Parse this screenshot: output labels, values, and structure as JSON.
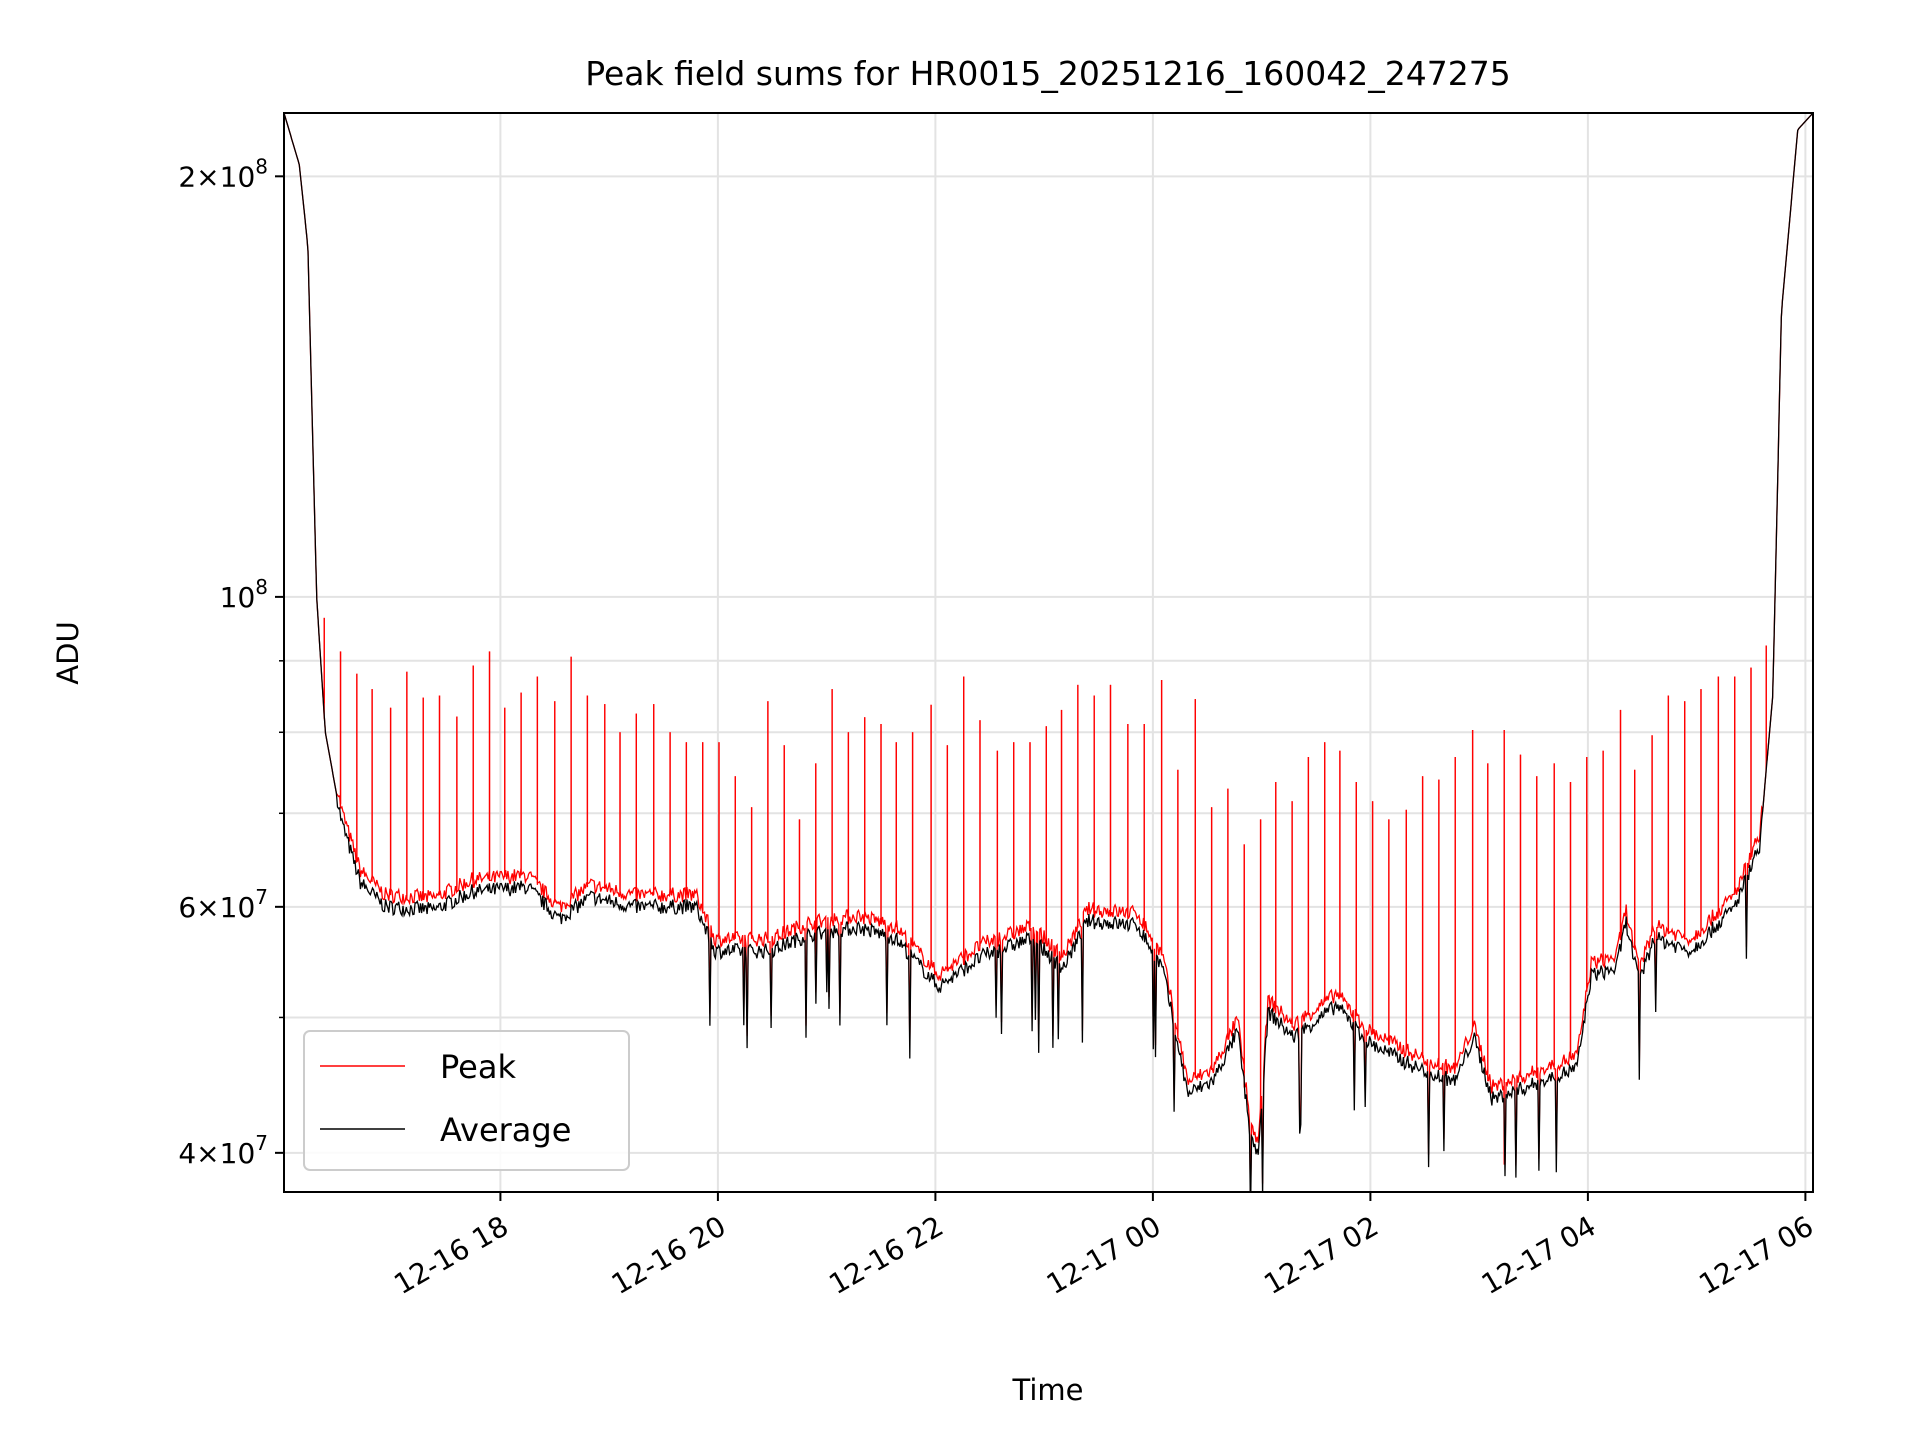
{
  "chart_data": {
    "type": "line",
    "title": "Peak field sums for HR0015_20251216_160042_247275",
    "xlabel": "Time",
    "ylabel": "ADU",
    "yscale": "log",
    "x_units": "hours since 12-16 00:00",
    "xlim": [
      16.01,
      30.07
    ],
    "ylim": [
      37500000,
      222000000
    ],
    "grid": true,
    "legend_position": "lower-left",
    "x_ticks": [
      {
        "value": 18,
        "label": "12-16 18"
      },
      {
        "value": 20,
        "label": "12-16 20"
      },
      {
        "value": 22,
        "label": "12-16 22"
      },
      {
        "value": 24,
        "label": "12-17 00"
      },
      {
        "value": 26,
        "label": "12-17 02"
      },
      {
        "value": 28,
        "label": "12-17 04"
      },
      {
        "value": 30,
        "label": "12-17 06"
      }
    ],
    "y_ticks": [
      {
        "value": 40000000,
        "mantissa": "4",
        "exp": "7"
      },
      {
        "value": 60000000,
        "mantissa": "6",
        "exp": "7"
      },
      {
        "value": 100000000,
        "mantissa": "",
        "exp": "8"
      },
      {
        "value": 200000000,
        "mantissa": "2",
        "exp": "8"
      }
    ],
    "y_minor_ticks": [
      50000000,
      70000000,
      80000000,
      90000000
    ],
    "series": [
      {
        "name": "Peak",
        "color": "#ff0000",
        "peak_over_average": 1.02,
        "spikes": {
          "t": [
            16.38,
            16.53,
            16.68,
            16.82,
            16.99,
            17.14,
            17.29,
            17.44,
            17.6,
            17.75,
            17.9,
            18.04,
            18.19,
            18.34,
            18.5,
            18.65,
            18.8,
            18.96,
            19.1,
            19.25,
            19.41,
            19.56,
            19.71,
            19.86,
            20.01,
            20.16,
            20.31,
            20.46,
            20.61,
            20.75,
            20.9,
            21.05,
            21.2,
            21.35,
            21.5,
            21.64,
            21.79,
            21.96,
            22.11,
            22.26,
            22.41,
            22.57,
            22.72,
            22.87,
            23.02,
            23.16,
            23.31,
            23.46,
            23.61,
            23.77,
            23.92,
            24.08,
            24.23,
            24.39,
            24.54,
            24.69,
            24.84,
            24.99,
            25.13,
            25.28,
            25.43,
            25.58,
            25.72,
            25.87,
            26.02,
            26.17,
            26.33,
            26.48,
            26.63,
            26.78,
            26.94,
            27.08,
            27.23,
            27.38,
            27.53,
            27.69,
            27.84,
            27.99,
            28.14,
            28.3,
            28.43,
            28.59,
            28.74,
            28.89,
            29.04,
            29.2,
            29.35,
            29.5,
            29.64
          ],
          "value_1e7": [
            9.66,
            9.14,
            8.81,
            8.59,
            8.33,
            8.84,
            8.47,
            8.5,
            8.21,
            8.93,
            9.14,
            8.33,
            8.54,
            8.77,
            8.42,
            9.06,
            8.5,
            8.38,
            8.0,
            8.25,
            8.38,
            8.0,
            7.87,
            7.87,
            7.87,
            7.44,
            7.07,
            8.42,
            7.83,
            6.93,
            7.6,
            8.59,
            8.0,
            8.2,
            8.11,
            7.87,
            8.0,
            8.37,
            7.83,
            8.77,
            8.16,
            7.76,
            7.87,
            7.87,
            8.08,
            8.3,
            8.65,
            8.5,
            8.65,
            8.11,
            8.11,
            8.72,
            7.52,
            8.45,
            7.07,
            7.29,
            6.65,
            6.93,
            7.37,
            7.14,
            7.68,
            7.87,
            7.76,
            7.37,
            7.14,
            6.93,
            7.04,
            7.44,
            7.4,
            7.68,
            8.03,
            7.6,
            8.03,
            7.71,
            7.44,
            7.6,
            7.37,
            7.68,
            7.76,
            8.3,
            7.52,
            7.96,
            8.5,
            8.42,
            8.59,
            8.77,
            8.77,
            8.9,
            9.23
          ]
        }
      },
      {
        "name": "Average",
        "color": "#000000",
        "t": [
          16.01,
          16.15,
          16.23,
          16.31,
          16.39,
          16.54,
          16.71,
          16.94,
          17.39,
          17.74,
          18.25,
          18.54,
          18.83,
          19.22,
          19.8,
          19.97,
          20.48,
          20.83,
          21.29,
          21.63,
          22.03,
          22.43,
          22.89,
          23.17,
          23.4,
          23.86,
          24.09,
          24.32,
          24.55,
          24.78,
          24.89,
          24.97,
          25.06,
          25.29,
          25.69,
          25.98,
          26.43,
          26.78,
          26.95,
          27.12,
          27.58,
          27.9,
          28.03,
          28.26,
          28.35,
          28.47,
          28.61,
          28.95,
          29.35,
          29.58,
          29.7,
          29.78,
          29.93,
          30.07
        ],
        "value_1e7": [
          22.2,
          20.4,
          17.8,
          10.0,
          8.0,
          6.9,
          6.25,
          6.0,
          5.97,
          6.15,
          6.2,
          5.88,
          6.1,
          6.0,
          6.0,
          5.58,
          5.58,
          5.73,
          5.8,
          5.7,
          5.26,
          5.53,
          5.7,
          5.42,
          5.86,
          5.82,
          5.42,
          4.41,
          4.5,
          4.89,
          4.15,
          3.98,
          5.05,
          4.84,
          5.1,
          4.8,
          4.6,
          4.5,
          4.84,
          4.37,
          4.5,
          4.6,
          5.36,
          5.42,
          5.86,
          5.3,
          5.7,
          5.58,
          6.0,
          6.65,
          8.5,
          16.0,
          21.6,
          22.2
        ]
      }
    ]
  }
}
